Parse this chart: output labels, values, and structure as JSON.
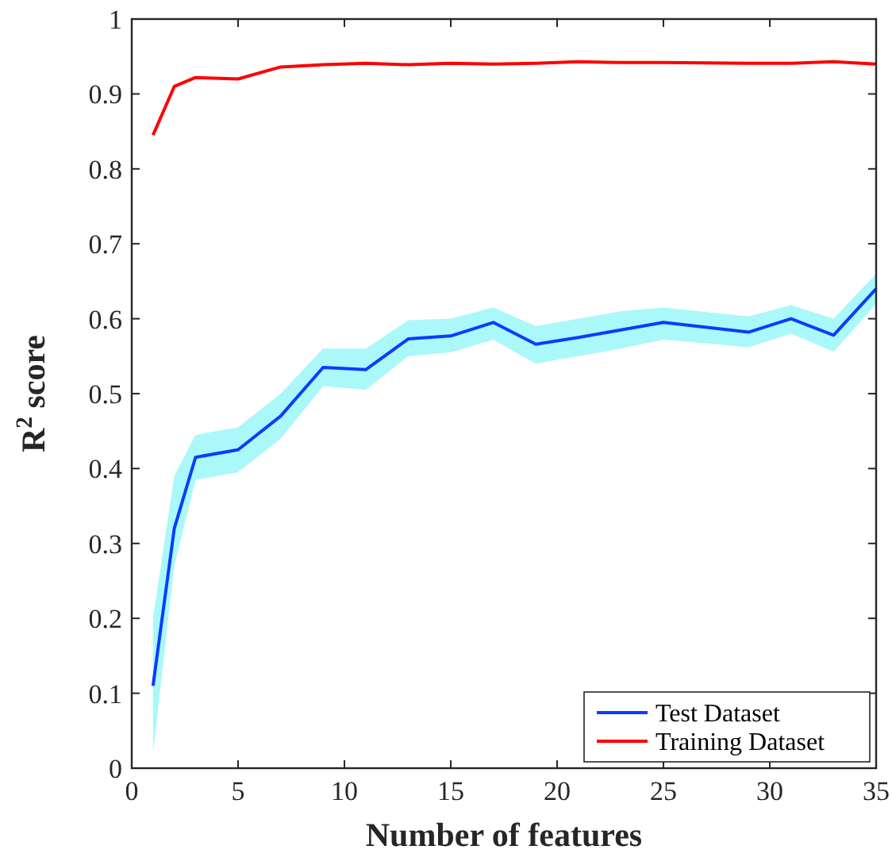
{
  "chart_data": {
    "type": "line",
    "xlabel": "Number of features",
    "ylabel": "R$^{2}$ score",
    "xlim": [
      0,
      35
    ],
    "xticks": [
      0,
      5,
      10,
      15,
      20,
      25,
      30,
      35
    ],
    "ylim": [
      0,
      1
    ],
    "yticks": [
      0,
      0.1,
      0.2,
      0.3,
      0.4,
      0.5,
      0.6,
      0.7,
      0.8,
      0.9,
      1
    ],
    "grid": false,
    "legend": "bottom right",
    "marker": "none",
    "line_style": "solid",
    "series": [
      {
        "name": "Test Dataset",
        "color": "#0a3cff",
        "x": [
          1,
          2,
          3,
          5,
          7,
          9,
          11,
          13,
          15,
          17,
          19,
          21,
          23,
          25,
          29,
          31,
          33,
          35
        ],
        "values": [
          0.11,
          0.32,
          0.415,
          0.425,
          0.47,
          0.535,
          0.532,
          0.573,
          0.577,
          0.595,
          0.566,
          0.575,
          0.585,
          0.595,
          0.582,
          0.6,
          0.578,
          0.64
        ],
        "lower": [
          0.02,
          0.27,
          0.385,
          0.395,
          0.44,
          0.51,
          0.505,
          0.55,
          0.555,
          0.572,
          0.54,
          0.55,
          0.56,
          0.572,
          0.562,
          0.58,
          0.556,
          0.62
        ],
        "upper": [
          0.2,
          0.39,
          0.445,
          0.455,
          0.5,
          0.56,
          0.56,
          0.598,
          0.6,
          0.615,
          0.59,
          0.6,
          0.61,
          0.615,
          0.603,
          0.618,
          0.6,
          0.66
        ]
      },
      {
        "name": "Training Dataset",
        "color": "#ff0000",
        "x": [
          1,
          2,
          3,
          5,
          7,
          9,
          11,
          13,
          15,
          17,
          19,
          21,
          23,
          25,
          29,
          31,
          33,
          35
        ],
        "values": [
          0.845,
          0.91,
          0.922,
          0.92,
          0.936,
          0.939,
          0.941,
          0.939,
          0.941,
          0.94,
          0.941,
          0.943,
          0.942,
          0.942,
          0.941,
          0.941,
          0.943,
          0.94
        ]
      }
    ]
  }
}
